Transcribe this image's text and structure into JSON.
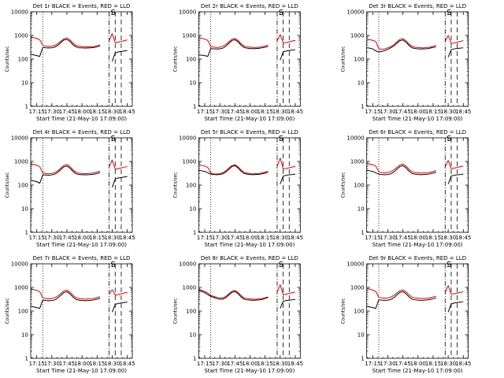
{
  "chart_data": {
    "type": "line",
    "ylabel": "Counts/sec",
    "xlabel": "Start Time (21-May-10 17:09:00)",
    "y_scale": "log",
    "ylim": [
      1,
      10000
    ],
    "y_ticks": [
      1,
      10,
      100,
      1000,
      10000
    ],
    "y_tick_labels": [
      "1",
      "10",
      "100",
      "1000",
      "10000"
    ],
    "x_tick_labels": [
      "17:15",
      "17:30",
      "17:45",
      "18:00",
      "18:15",
      "18:30",
      "18:45"
    ],
    "x_ticks_min": [
      6,
      21,
      36,
      51,
      66,
      81,
      96
    ],
    "xlim_min": [
      0,
      101
    ],
    "series_names": [
      "Events",
      "LLD"
    ],
    "colors": {
      "events": "#000000",
      "lld": "#e00000",
      "axes": "#000000",
      "background": "#ffffff"
    },
    "marker_label": "S",
    "vlines_min": {
      "dotted": 12,
      "dashdot": 78,
      "dash1": 84,
      "dash2": 90
    },
    "times_min": [
      0,
      3,
      6,
      9,
      12,
      15,
      18,
      21,
      24,
      27,
      30,
      33,
      36,
      39,
      42,
      45,
      48,
      51,
      54,
      57,
      60,
      63,
      66,
      69,
      72,
      75,
      78,
      81,
      84,
      87,
      90,
      93,
      96,
      99
    ],
    "panels": [
      {
        "title": "Det 1r BLACK = Events, RED = LLD",
        "events": [
          160,
          150,
          140,
          130,
          310,
          300,
          295,
          300,
          320,
          380,
          500,
          640,
          680,
          560,
          400,
          330,
          300,
          300,
          290,
          295,
          300,
          310,
          330,
          360,
          null,
          null,
          null,
          80,
          180,
          200,
          210,
          220,
          230,
          null
        ],
        "lld": [
          850,
          800,
          750,
          650,
          380,
          350,
          340,
          350,
          380,
          450,
          580,
          720,
          780,
          650,
          480,
          380,
          350,
          340,
          330,
          330,
          330,
          340,
          370,
          400,
          null,
          null,
          600,
          1200,
          500,
          520,
          560,
          600,
          650,
          null
        ]
      },
      {
        "title": "Det 2r BLACK = Events, RED = LLD",
        "events": [
          150,
          145,
          140,
          130,
          280,
          270,
          265,
          270,
          290,
          350,
          470,
          610,
          660,
          540,
          390,
          310,
          290,
          280,
          275,
          280,
          285,
          300,
          320,
          340,
          null,
          null,
          null,
          90,
          200,
          220,
          230,
          240,
          250,
          null
        ],
        "lld": [
          800,
          760,
          700,
          620,
          340,
          320,
          310,
          320,
          350,
          420,
          540,
          690,
          750,
          620,
          450,
          360,
          330,
          320,
          310,
          310,
          320,
          330,
          360,
          390,
          null,
          null,
          580,
          1100,
          480,
          500,
          540,
          580,
          620,
          null
        ]
      },
      {
        "title": "Det 3r BLACK = Events, RED = LLD",
        "events": [
          300,
          290,
          270,
          220,
          200,
          210,
          230,
          260,
          300,
          360,
          470,
          600,
          640,
          520,
          380,
          300,
          280,
          270,
          265,
          270,
          275,
          290,
          310,
          330,
          null,
          null,
          null,
          120,
          250,
          270,
          280,
          290,
          300,
          null
        ],
        "lld": [
          700,
          660,
          620,
          560,
          270,
          260,
          270,
          300,
          340,
          410,
          530,
          680,
          730,
          600,
          440,
          350,
          320,
          310,
          300,
          300,
          310,
          320,
          350,
          380,
          null,
          null,
          560,
          1000,
          460,
          480,
          520,
          560,
          600,
          null
        ]
      },
      {
        "title": "Det 4r BLACK = Events, RED = LLD",
        "events": [
          160,
          150,
          140,
          120,
          270,
          265,
          260,
          270,
          290,
          350,
          460,
          590,
          640,
          520,
          380,
          300,
          280,
          275,
          270,
          275,
          280,
          290,
          310,
          340,
          null,
          null,
          null,
          80,
          180,
          200,
          210,
          220,
          230,
          null
        ],
        "lld": [
          780,
          740,
          690,
          600,
          330,
          310,
          300,
          310,
          340,
          410,
          530,
          680,
          740,
          610,
          440,
          350,
          320,
          310,
          305,
          310,
          315,
          330,
          360,
          390,
          null,
          null,
          580,
          1150,
          470,
          490,
          530,
          570,
          610,
          null
        ]
      },
      {
        "title": "Det 5r BLACK = Events, RED = LLD",
        "events": [
          420,
          400,
          380,
          330,
          290,
          280,
          275,
          280,
          300,
          360,
          470,
          610,
          660,
          540,
          390,
          310,
          290,
          280,
          275,
          280,
          285,
          300,
          320,
          350,
          null,
          null,
          null,
          110,
          240,
          260,
          270,
          280,
          290,
          null
        ],
        "lld": [
          720,
          680,
          640,
          560,
          320,
          300,
          295,
          305,
          335,
          400,
          520,
          670,
          730,
          600,
          440,
          350,
          320,
          310,
          300,
          305,
          310,
          325,
          355,
          385,
          null,
          null,
          620,
          1400,
          480,
          500,
          540,
          580,
          620,
          null
        ]
      },
      {
        "title": "Det 6r BLACK = Events, RED = LLD",
        "events": [
          420,
          400,
          380,
          330,
          290,
          280,
          275,
          280,
          300,
          360,
          470,
          610,
          660,
          540,
          390,
          310,
          290,
          280,
          275,
          280,
          285,
          300,
          320,
          350,
          null,
          null,
          null,
          110,
          240,
          260,
          270,
          280,
          290,
          null
        ],
        "lld": [
          820,
          780,
          720,
          640,
          360,
          340,
          330,
          340,
          370,
          440,
          560,
          710,
          770,
          640,
          470,
          370,
          340,
          330,
          320,
          325,
          330,
          345,
          375,
          405,
          null,
          null,
          600,
          1100,
          500,
          520,
          560,
          600,
          640,
          null
        ]
      },
      {
        "title": "Det 7r BLACK = Events, RED = LLD",
        "events": [
          160,
          150,
          140,
          130,
          290,
          280,
          275,
          280,
          300,
          360,
          470,
          610,
          660,
          540,
          390,
          310,
          290,
          280,
          275,
          280,
          285,
          300,
          320,
          350,
          null,
          null,
          null,
          90,
          190,
          210,
          220,
          230,
          240,
          null
        ],
        "lld": [
          860,
          810,
          760,
          660,
          360,
          340,
          330,
          340,
          370,
          440,
          560,
          710,
          770,
          640,
          470,
          370,
          340,
          330,
          320,
          325,
          330,
          345,
          375,
          405,
          null,
          null,
          520,
          800,
          480,
          500,
          540,
          580,
          620,
          null
        ]
      },
      {
        "title": "Det 8r BLACK = Events, RED = LLD",
        "events": [
          750,
          680,
          600,
          500,
          420,
          380,
          340,
          320,
          320,
          370,
          480,
          620,
          670,
          550,
          400,
          320,
          300,
          290,
          285,
          290,
          295,
          310,
          340,
          380,
          null,
          null,
          null,
          130,
          260,
          280,
          290,
          300,
          310,
          null
        ],
        "lld": [
          820,
          760,
          680,
          580,
          460,
          420,
          380,
          360,
          360,
          420,
          540,
          690,
          750,
          620,
          460,
          360,
          340,
          330,
          320,
          320,
          330,
          340,
          370,
          400,
          null,
          null,
          640,
          1300,
          500,
          520,
          560,
          600,
          640,
          null
        ]
      },
      {
        "title": "Det 9r BLACK = Events, RED = LLD",
        "events": [
          160,
          150,
          140,
          130,
          300,
          290,
          285,
          290,
          310,
          370,
          480,
          620,
          670,
          550,
          400,
          320,
          300,
          290,
          285,
          290,
          295,
          310,
          330,
          360,
          null,
          null,
          null,
          90,
          200,
          220,
          230,
          240,
          250,
          null
        ],
        "lld": [
          900,
          850,
          780,
          680,
          380,
          360,
          350,
          360,
          390,
          460,
          580,
          730,
          790,
          660,
          490,
          390,
          360,
          350,
          340,
          345,
          350,
          365,
          395,
          425,
          null,
          null,
          620,
          1200,
          520,
          540,
          580,
          620,
          660,
          null
        ]
      }
    ]
  }
}
